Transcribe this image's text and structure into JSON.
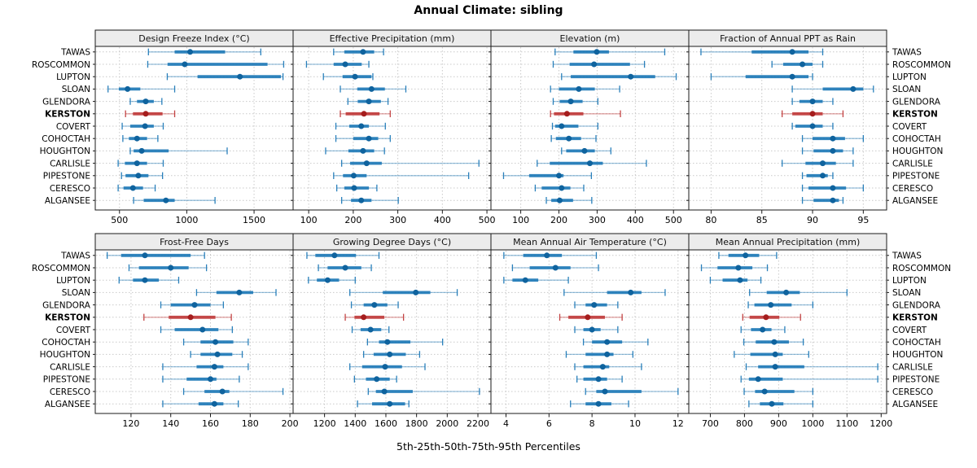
{
  "title": "Annual Climate: sibling",
  "caption": "5th-25th-50th-75th-95th Percentiles",
  "stations": [
    "TAWAS",
    "ROSCOMMON",
    "LUPTON",
    "SLOAN",
    "GLENDORA",
    "KERSTON",
    "COVERT",
    "COHOCTAH",
    "HOUGHTON",
    "CARLISLE",
    "PIPESTONE",
    "CERESCO",
    "ALGANSEE"
  ],
  "highlight_station": "KERSTON",
  "colors": {
    "series": "#1f7ab8",
    "series_dot": "#0f639e",
    "highlight": "#c03a3a",
    "highlight_dot": "#a51d1d",
    "grid": "#c9c9c9",
    "strip_bg": "#ececec",
    "border": "#1a1a1a"
  },
  "chart_data": [
    {
      "type": "percentile-dot",
      "title": "Design Freeze Index (°C)",
      "percentile_labels": [
        "5th",
        "25th",
        "50th",
        "75th",
        "95th"
      ],
      "xticks": [
        500,
        1000,
        1500
      ],
      "xlim": [
        320,
        1790
      ],
      "values": [
        [
          715,
          910,
          1025,
          1285,
          1550
        ],
        [
          710,
          857,
          985,
          1600,
          1720
        ],
        [
          855,
          1080,
          1395,
          1700,
          1715
        ],
        [
          415,
          495,
          560,
          655,
          910
        ],
        [
          580,
          630,
          695,
          755,
          815
        ],
        [
          545,
          600,
          695,
          820,
          910
        ],
        [
          520,
          580,
          690,
          755,
          825
        ],
        [
          525,
          570,
          630,
          705,
          785
        ],
        [
          580,
          605,
          665,
          865,
          1300
        ],
        [
          490,
          540,
          630,
          705,
          825
        ],
        [
          515,
          545,
          640,
          715,
          820
        ],
        [
          490,
          530,
          600,
          675,
          765
        ],
        [
          605,
          680,
          845,
          910,
          1210
        ]
      ]
    },
    {
      "type": "percentile-dot",
      "title": "Effective Precipitation (mm)",
      "percentile_labels": [
        "5th",
        "25th",
        "50th",
        "75th",
        "95th"
      ],
      "xticks": [
        100,
        200,
        300,
        400,
        500
      ],
      "xlim": [
        65,
        509
      ],
      "values": [
        [
          156,
          180,
          222,
          247,
          268
        ],
        [
          95,
          156,
          182,
          219,
          235
        ],
        [
          133,
          176,
          204,
          241,
          244
        ],
        [
          171,
          209,
          241,
          271,
          318
        ],
        [
          188,
          210,
          235,
          262,
          278
        ],
        [
          171,
          183,
          224,
          259,
          283
        ],
        [
          161,
          191,
          218,
          235,
          272
        ],
        [
          161,
          200,
          235,
          256,
          283
        ],
        [
          138,
          189,
          222,
          247,
          270
        ],
        [
          174,
          193,
          230,
          264,
          482
        ],
        [
          156,
          177,
          201,
          230,
          459
        ],
        [
          163,
          180,
          202,
          235,
          253
        ],
        [
          174,
          195,
          218,
          241,
          301
        ]
      ]
    },
    {
      "type": "percentile-dot",
      "title": "Elevation (m)",
      "percentile_labels": [
        "5th",
        "25th",
        "50th",
        "75th",
        "95th"
      ],
      "xticks": [
        100,
        200,
        300,
        400,
        500
      ],
      "xlim": [
        22,
        540
      ],
      "values": [
        [
          190,
          238,
          299,
          331,
          477
        ],
        [
          185,
          228,
          292,
          386,
          424
        ],
        [
          207,
          231,
          388,
          452,
          507
        ],
        [
          178,
          200,
          252,
          294,
          359
        ],
        [
          185,
          202,
          231,
          262,
          302
        ],
        [
          178,
          187,
          221,
          264,
          361
        ],
        [
          183,
          190,
          207,
          251,
          302
        ],
        [
          180,
          192,
          226,
          258,
          297
        ],
        [
          207,
          219,
          267,
          294,
          336
        ],
        [
          143,
          176,
          281,
          315,
          429
        ],
        [
          55,
          122,
          200,
          212,
          285
        ],
        [
          138,
          155,
          207,
          230,
          265
        ],
        [
          167,
          180,
          202,
          237,
          286
        ]
      ]
    },
    {
      "type": "percentile-dot",
      "title": "Fraction of Annual PPT as Rain",
      "percentile_labels": [
        "5th",
        "25th",
        "50th",
        "75th",
        "95th"
      ],
      "xticks": [
        80,
        85,
        90,
        95
      ],
      "xlim": [
        77.8,
        97.3
      ],
      "values": [
        [
          79,
          84,
          88,
          89.6,
          91
        ],
        [
          86,
          87.1,
          89,
          90,
          91
        ],
        [
          80,
          83.4,
          88,
          89.6,
          90
        ],
        [
          88,
          91,
          94,
          95,
          96
        ],
        [
          88,
          88.7,
          90,
          91,
          92
        ],
        [
          87,
          88,
          90,
          91,
          93
        ],
        [
          88,
          88.3,
          90,
          91,
          92
        ],
        [
          89,
          90,
          92,
          93.2,
          95
        ],
        [
          89,
          90.1,
          92,
          93,
          94
        ],
        [
          87,
          89.3,
          91,
          92.3,
          94
        ],
        [
          89,
          89.4,
          91,
          91.5,
          92
        ],
        [
          89,
          89.6,
          92,
          93.3,
          95
        ],
        [
          89,
          90.1,
          92,
          92.6,
          93
        ]
      ]
    },
    {
      "type": "percentile-dot",
      "title": "Frost-Free Days",
      "percentile_labels": [
        "5th",
        "25th",
        "50th",
        "75th",
        "95th"
      ],
      "xticks": [
        120,
        140,
        160,
        180,
        200
      ],
      "xlim": [
        102,
        201.6
      ],
      "values": [
        [
          108,
          115,
          127,
          150,
          157
        ],
        [
          119,
          124,
          140,
          149,
          158
        ],
        [
          114,
          121,
          127,
          134,
          144
        ],
        [
          153,
          163,
          174.5,
          181.5,
          193
        ],
        [
          135,
          140,
          152,
          160,
          166.5
        ],
        [
          126.5,
          139,
          150,
          162.5,
          170.5
        ],
        [
          135,
          142,
          156,
          164,
          171
        ],
        [
          146.5,
          155,
          162.5,
          171.5,
          179
        ],
        [
          150,
          155,
          163.5,
          171,
          176
        ],
        [
          136,
          153,
          162,
          166.5,
          179
        ],
        [
          136,
          148,
          160,
          163,
          174.5
        ],
        [
          146.5,
          157,
          166,
          169.5,
          196.5
        ],
        [
          136,
          154,
          162,
          166.5,
          174
        ]
      ]
    },
    {
      "type": "percentile-dot",
      "title": "Growing Degree Days (°C)",
      "percentile_labels": [
        "5th",
        "25th",
        "50th",
        "75th",
        "95th"
      ],
      "xticks": [
        1200,
        1400,
        1600,
        1800,
        2000,
        2200
      ],
      "xlim": [
        995,
        2285
      ],
      "values": [
        [
          1085,
          1140,
          1265,
          1405,
          1555
        ],
        [
          1160,
          1220,
          1335,
          1440,
          1505
        ],
        [
          1095,
          1150,
          1220,
          1295,
          1400
        ],
        [
          1365,
          1580,
          1795,
          1890,
          2065
        ],
        [
          1375,
          1455,
          1525,
          1610,
          1680
        ],
        [
          1335,
          1395,
          1455,
          1590,
          1715
        ],
        [
          1380,
          1435,
          1500,
          1570,
          1620
        ],
        [
          1480,
          1555,
          1610,
          1760,
          1970
        ],
        [
          1455,
          1520,
          1625,
          1730,
          1820
        ],
        [
          1365,
          1445,
          1595,
          1705,
          1855
        ],
        [
          1395,
          1470,
          1540,
          1625,
          1670
        ],
        [
          1485,
          1535,
          1590,
          1775,
          2210
        ],
        [
          1415,
          1510,
          1625,
          1725,
          1750
        ]
      ]
    },
    {
      "type": "percentile-dot",
      "title": "Mean Annual Air Temperature (°C)",
      "percentile_labels": [
        "5th",
        "25th",
        "50th",
        "75th",
        "95th"
      ],
      "xticks": [
        4,
        6,
        8,
        10,
        12
      ],
      "xlim": [
        3.3,
        12.5
      ],
      "values": [
        [
          3.9,
          4.8,
          5.9,
          6.6,
          8.2
        ],
        [
          4.3,
          5.1,
          6.3,
          7.0,
          8.3
        ],
        [
          3.9,
          4.3,
          4.9,
          5.5,
          6.9
        ],
        [
          6.7,
          8.7,
          9.8,
          10.3,
          11.4
        ],
        [
          7.2,
          7.7,
          8.1,
          8.7,
          9.2
        ],
        [
          6.5,
          6.9,
          7.8,
          8.6,
          9.4
        ],
        [
          7.2,
          7.6,
          8.0,
          8.4,
          9.2
        ],
        [
          7.6,
          8.0,
          8.7,
          9.4,
          10.6
        ],
        [
          6.8,
          7.7,
          8.7,
          9.0,
          9.9
        ],
        [
          7.2,
          7.6,
          8.5,
          8.8,
          10.3
        ],
        [
          7.3,
          7.6,
          8.3,
          8.7,
          9.4
        ],
        [
          7.7,
          8.2,
          8.6,
          10.3,
          12.0
        ],
        [
          7.0,
          7.7,
          8.3,
          8.9,
          9.7
        ]
      ]
    },
    {
      "type": "percentile-dot",
      "title": "Mean Annual Precipitation (mm)",
      "percentile_labels": [
        "5th",
        "25th",
        "50th",
        "75th",
        "95th"
      ],
      "xticks": [
        700,
        800,
        900,
        1000,
        1100,
        1200
      ],
      "xlim": [
        637,
        1216
      ],
      "values": [
        [
          725,
          753,
          803,
          843,
          894
        ],
        [
          674,
          721,
          782,
          823,
          867
        ],
        [
          700,
          736,
          787,
          809,
          848
        ],
        [
          815,
          865,
          922,
          962,
          1100
        ],
        [
          811,
          829,
          877,
          938,
          1000
        ],
        [
          795,
          815,
          863,
          902,
          964
        ],
        [
          790,
          819,
          853,
          879,
          918
        ],
        [
          798,
          833,
          887,
          930,
          972
        ],
        [
          770,
          817,
          890,
          912,
          988
        ],
        [
          805,
          840,
          890,
          975,
          1190
        ],
        [
          790,
          813,
          840,
          912,
          1190
        ],
        [
          799,
          831,
          859,
          946,
          1000
        ],
        [
          813,
          845,
          880,
          914,
          1000
        ]
      ]
    }
  ]
}
